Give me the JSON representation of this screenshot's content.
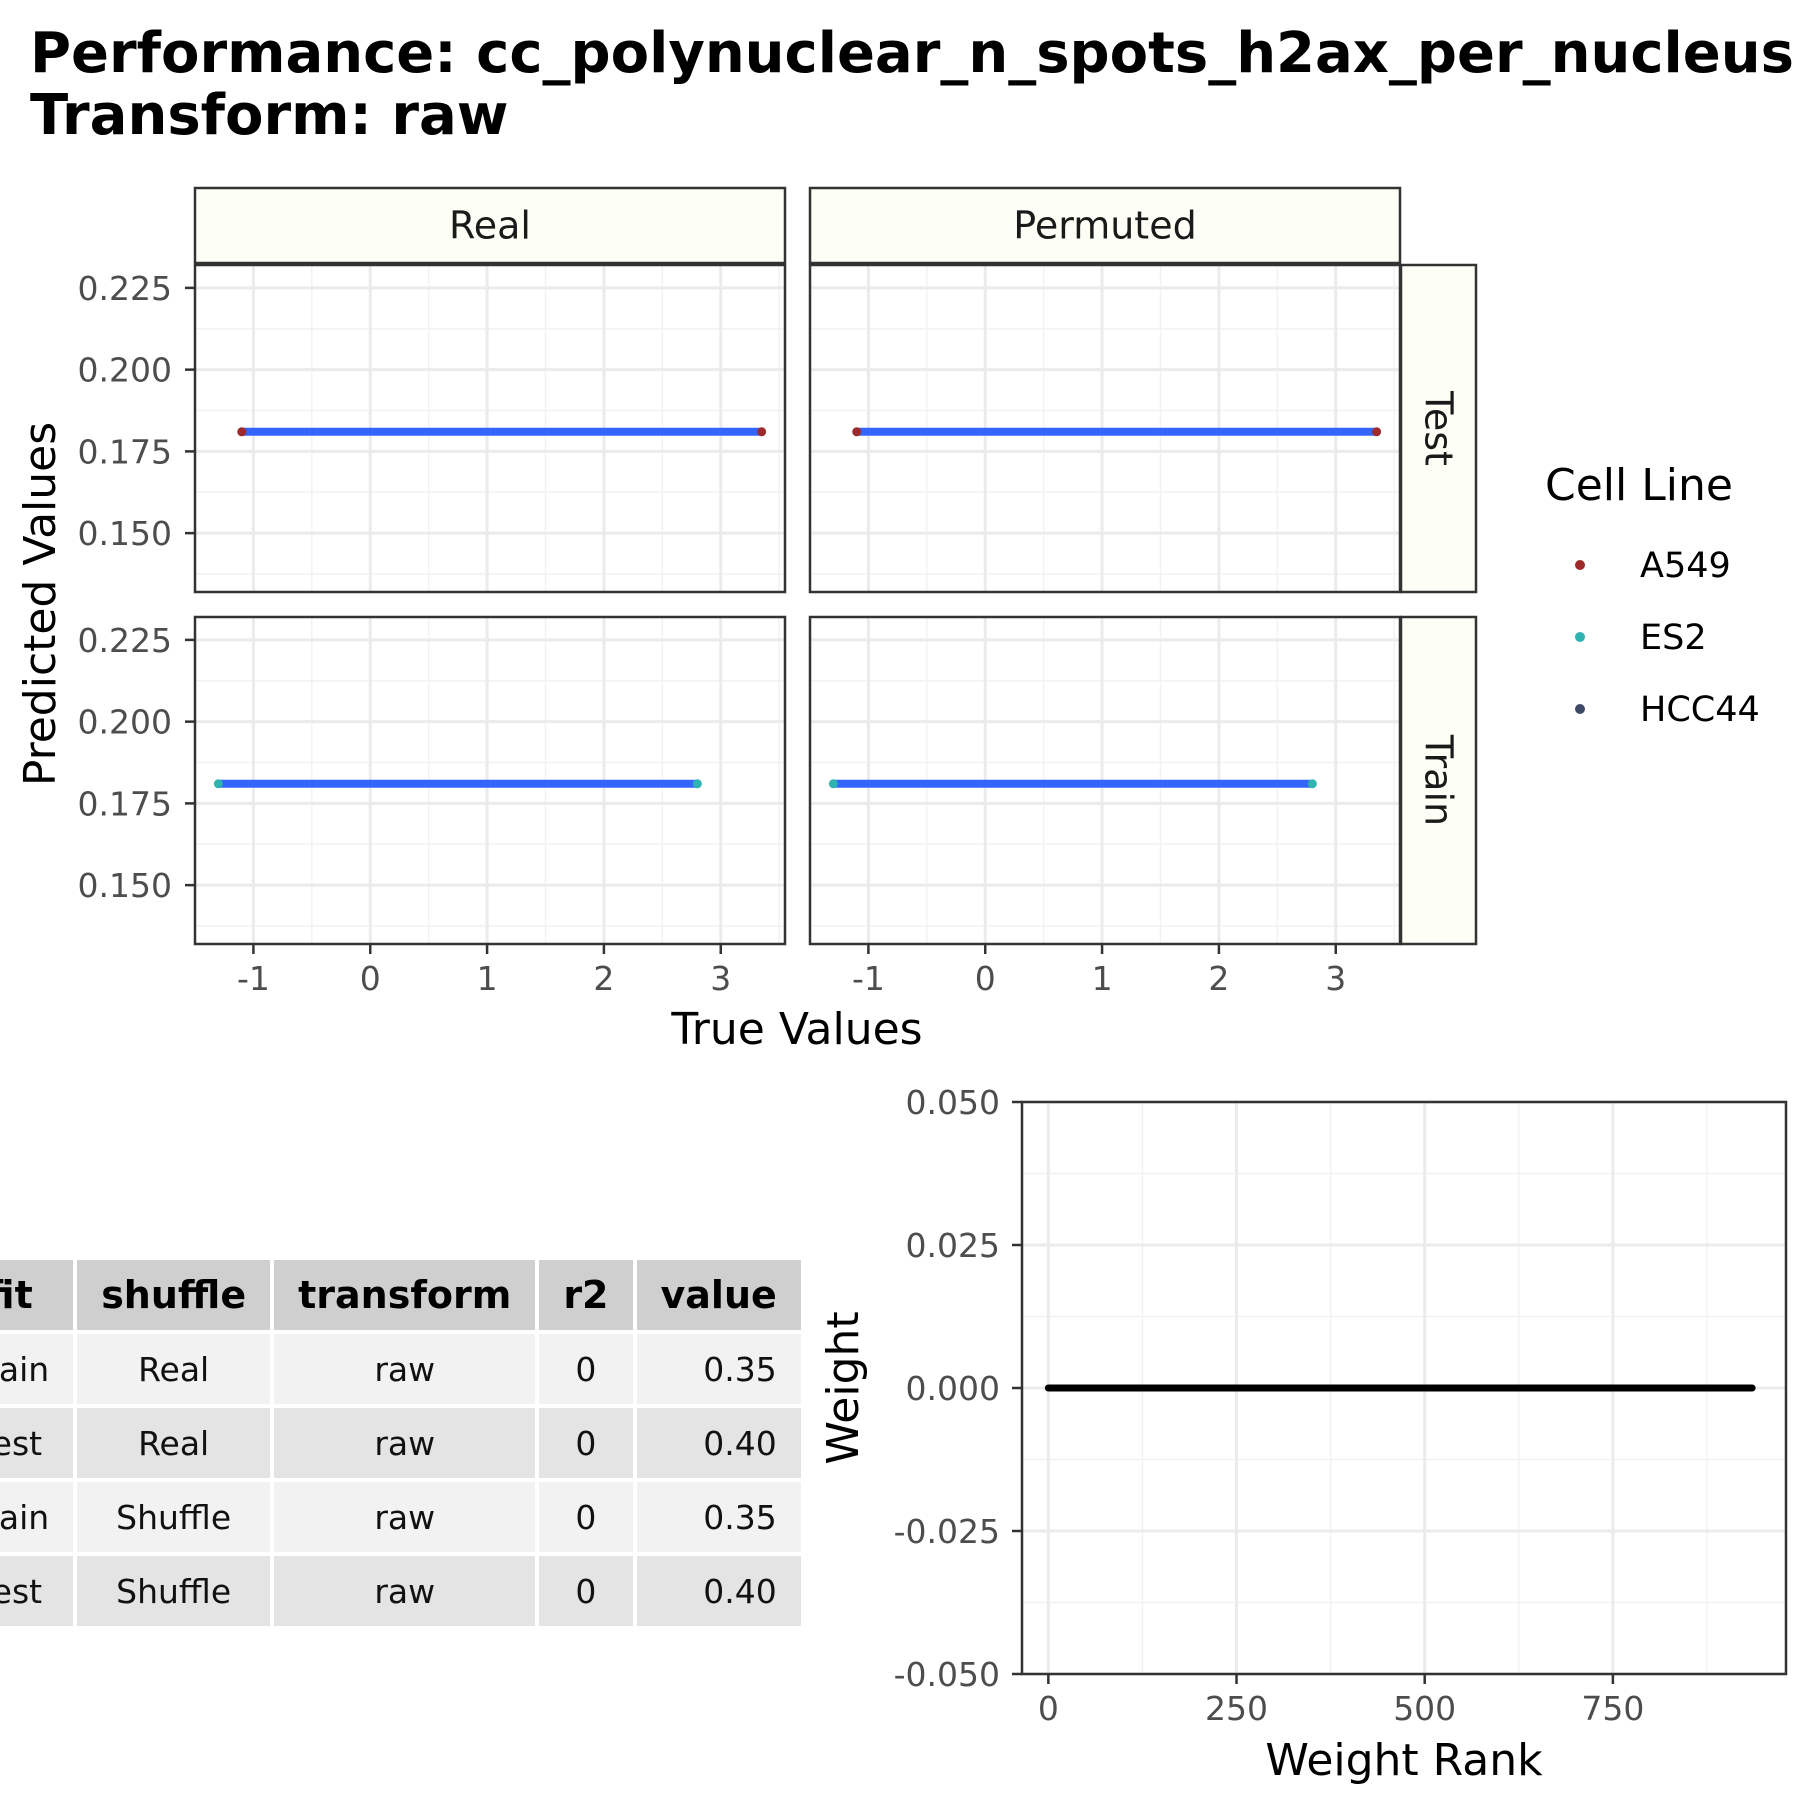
{
  "title_line1": "Performance: cc_polynuclear_n_spots_h2ax_per_nucleus",
  "title_line2": "Transform: raw",
  "colors": {
    "A549": "#9e2a2b",
    "ES2": "#2fb3b0",
    "HCC44": "#3d4a66",
    "fit_line": "#3366ff",
    "strip_fill": "#fdfef5"
  },
  "chart_data": [
    {
      "type": "scatter",
      "xlabel": "True Values",
      "ylabel": "Predicted Values",
      "xlim": [
        -1.5,
        3.55
      ],
      "ylim": [
        0.132,
        0.232
      ],
      "x_ticks": [
        -1,
        0,
        1,
        2,
        3
      ],
      "y_ticks": [
        0.15,
        0.175,
        0.2,
        0.225
      ],
      "x_tick_labels": [
        "-1",
        "0",
        "1",
        "2",
        "3"
      ],
      "y_tick_labels": [
        "0.150",
        "0.175",
        "0.200",
        "0.225"
      ],
      "columns": [
        "Real",
        "Permuted"
      ],
      "rows": [
        "Test",
        "Train"
      ],
      "grid": true,
      "legend_title": "Cell Line",
      "legend_position": "right",
      "legend": [
        "A549",
        "ES2",
        "HCC44"
      ],
      "panels": [
        {
          "col": "Real",
          "row": "Test",
          "predicted": 0.181,
          "x_range": [
            -1.1,
            3.35
          ],
          "end_cell_line": "A549"
        },
        {
          "col": "Permuted",
          "row": "Test",
          "predicted": 0.181,
          "x_range": [
            -1.1,
            3.35
          ],
          "end_cell_line": "A549"
        },
        {
          "col": "Real",
          "row": "Train",
          "predicted": 0.181,
          "x_range": [
            -1.3,
            2.8
          ],
          "end_cell_line": "ES2"
        },
        {
          "col": "Permuted",
          "row": "Train",
          "predicted": 0.181,
          "x_range": [
            -1.3,
            2.8
          ],
          "end_cell_line": "ES2"
        }
      ]
    },
    {
      "type": "table",
      "columns": [
        "fit",
        "shuffle",
        "transform",
        "r2",
        "value"
      ],
      "rows": [
        [
          "Train",
          "Real",
          "raw",
          "0",
          "0.35"
        ],
        [
          "Test",
          "Real",
          "raw",
          "0",
          "0.40"
        ],
        [
          "Train",
          "Shuffle",
          "raw",
          "0",
          "0.35"
        ],
        [
          "Test",
          "Shuffle",
          "raw",
          "0",
          "0.40"
        ]
      ]
    },
    {
      "type": "line",
      "xlabel": "Weight Rank",
      "ylabel": "Weight",
      "xlim": [
        -35,
        980
      ],
      "ylim": [
        -0.05,
        0.05
      ],
      "x_ticks": [
        0,
        250,
        500,
        750
      ],
      "y_ticks": [
        -0.05,
        -0.025,
        0,
        0.025,
        0.05
      ],
      "x_tick_labels": [
        "0",
        "250",
        "500",
        "750"
      ],
      "y_tick_labels": [
        "-0.050",
        "-0.025",
        "0.000",
        "0.025",
        "0.050"
      ],
      "grid": true,
      "series": [
        {
          "x": [
            0,
            935
          ],
          "y": [
            0,
            0
          ]
        }
      ]
    }
  ]
}
